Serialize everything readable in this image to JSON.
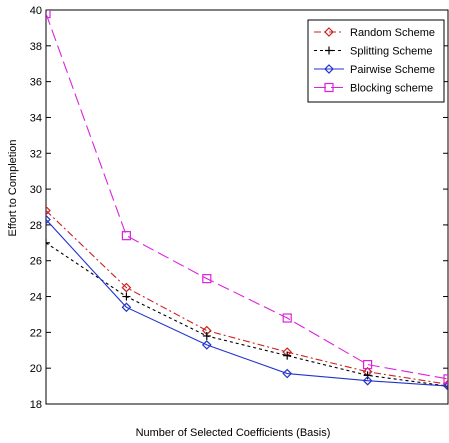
{
  "chart_data": {
    "type": "line",
    "title": "",
    "xlabel": "Number of Selected Coefficients (Basis)",
    "ylabel": "Effort to Completion",
    "x": [
      1,
      2,
      3,
      4,
      5,
      6
    ],
    "xlim": [
      1,
      6
    ],
    "ylim": [
      18,
      40
    ],
    "yticks": [
      18,
      20,
      22,
      24,
      26,
      28,
      30,
      32,
      34,
      36,
      38,
      40
    ],
    "grid": false,
    "legend_position": "top-right",
    "series": [
      {
        "name": "Random Scheme",
        "color": "#cc2222",
        "marker": "diamond",
        "dash": "7,3,2,3",
        "values": [
          28.8,
          24.5,
          22.1,
          20.9,
          19.8,
          19.1
        ]
      },
      {
        "name": "Splitting Scheme",
        "color": "#000000",
        "marker": "plus",
        "dash": "3,3",
        "values": [
          27.0,
          24.0,
          21.8,
          20.7,
          19.6,
          19.0
        ]
      },
      {
        "name": "Pairwise Scheme",
        "color": "#2233cc",
        "marker": "diamond",
        "dash": "",
        "values": [
          28.3,
          23.4,
          21.3,
          19.7,
          19.3,
          19.0
        ]
      },
      {
        "name": "Blocking scheme",
        "color": "#dd22dd",
        "marker": "square",
        "dash": "12,5",
        "values": [
          39.8,
          27.4,
          25.0,
          22.8,
          20.2,
          19.4
        ]
      }
    ]
  }
}
